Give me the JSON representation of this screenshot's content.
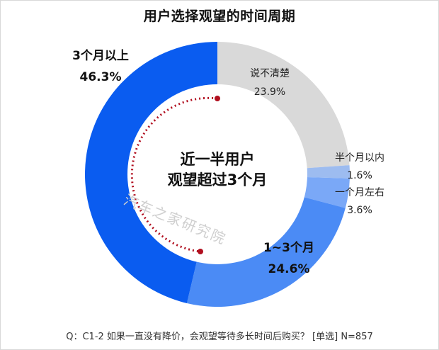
{
  "title": "用户选择观望的时间周期",
  "center_text": {
    "line1": "近一半用户",
    "line2": "观望超过3个月"
  },
  "watermark": "汽车之家研究院",
  "footer": "Q：C1-2 如果一直没有降价，会观望等待多长时间后购买？ [单选] N=857",
  "labels": {
    "more3": {
      "name": "3个月以上",
      "pct": "46.3%"
    },
    "unsure": {
      "name": "说不清楚",
      "pct": "23.9%"
    },
    "half": {
      "name": "半个月以内",
      "pct": "1.6%"
    },
    "one": {
      "name": "一个月左右",
      "pct": "3.6%"
    },
    "one3": {
      "name": "1~3个月",
      "pct": "24.6%"
    }
  },
  "chart_data": {
    "type": "pie",
    "subtype": "donut",
    "title": "用户选择观望的时间周期",
    "categories": [
      "说不清楚",
      "半个月以内",
      "一个月左右",
      "1~3个月",
      "3个月以上"
    ],
    "values": [
      23.9,
      1.6,
      3.6,
      24.6,
      46.3
    ],
    "colors": [
      "#d9d9d9",
      "#9dbcf0",
      "#7aa8f7",
      "#4b8bf5",
      "#0a5cf0"
    ],
    "start_angle": "12 o'clock, clockwise",
    "annotation": "近一半用户观望超过3个月",
    "note": "Q：C1-2 如果一直没有降价，会观望等待多长时间后购买？ [单选] N=857"
  }
}
